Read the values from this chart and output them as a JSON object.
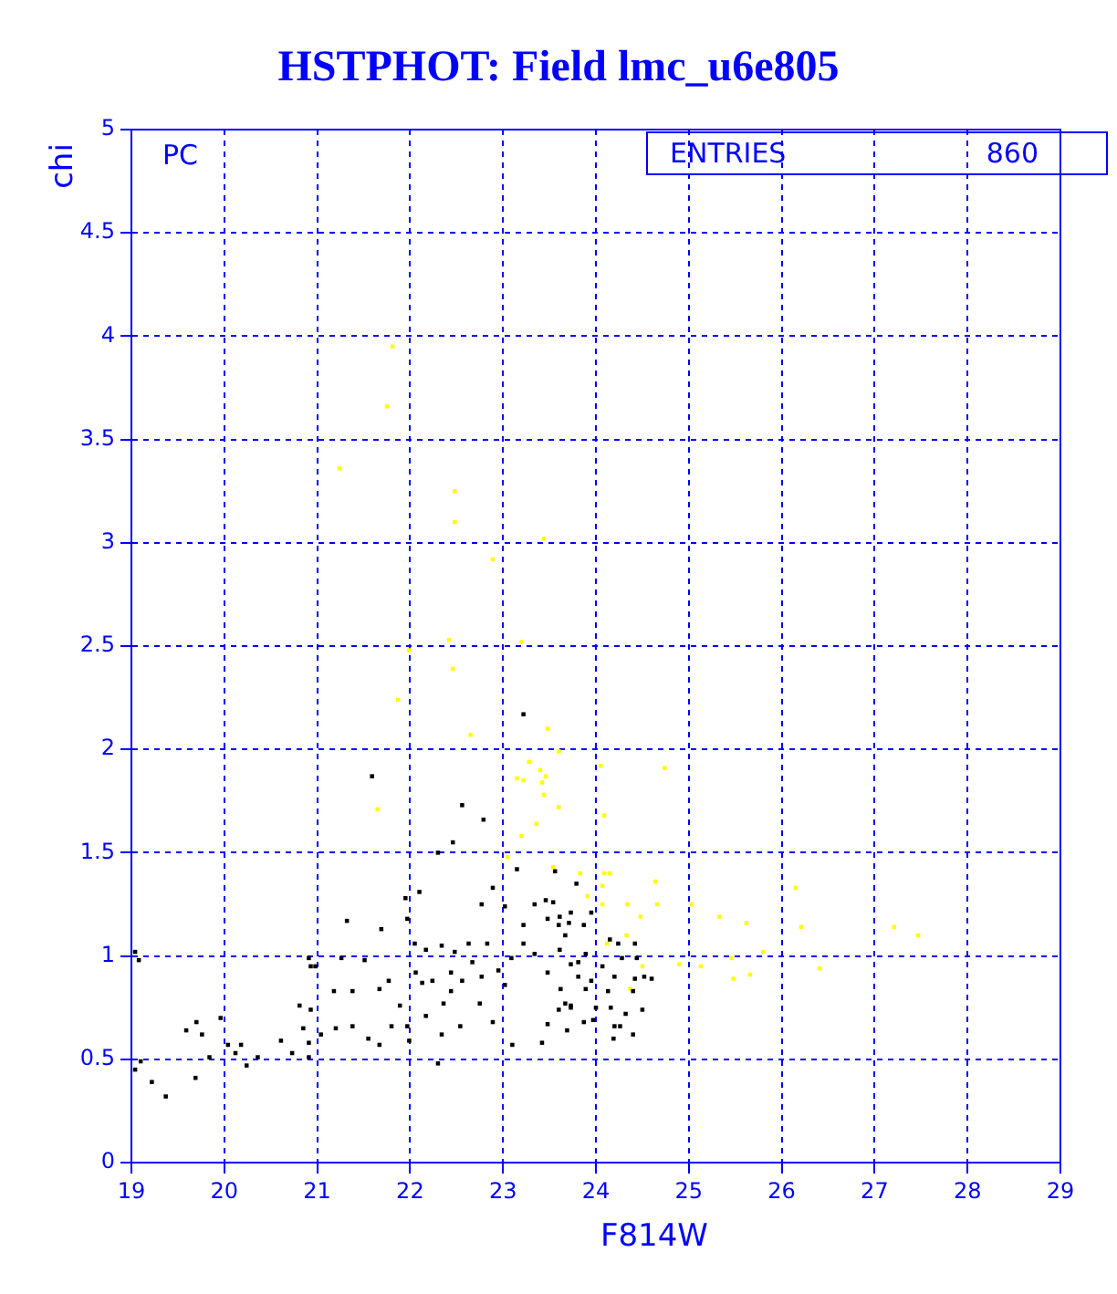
{
  "chart_data": {
    "type": "scatter",
    "title": "HSTPHOT: Field lmc_u6e805",
    "xlabel": "F814W",
    "ylabel": "chi",
    "annotations": [
      "PC",
      "ENTRIES",
      "860"
    ],
    "xlim": [
      19,
      29
    ],
    "ylim": [
      0,
      5
    ],
    "xticks": [
      19,
      20,
      21,
      22,
      23,
      24,
      25,
      26,
      27,
      28,
      29
    ],
    "yticks": [
      0,
      0.5,
      1,
      1.5,
      2,
      2.5,
      3,
      3.5,
      4,
      4.5,
      5
    ],
    "grid": true,
    "marker": "square",
    "series": [
      {
        "color": "#000000",
        "x": [
          21.59,
          23.22,
          22.56,
          22.79,
          22.46,
          22.3,
          23.15,
          22.77,
          21.95,
          21.32,
          21.69,
          21.97,
          22.1,
          19.04,
          19.08,
          19.1,
          19.04,
          19.22,
          19.37,
          19.7,
          19.76,
          19.59,
          19.69,
          19.84,
          19.96,
          20.04,
          20.12,
          20.24,
          20.36,
          20.18,
          20.61,
          20.73,
          20.91,
          20.81,
          20.91,
          20.93,
          20.98,
          20.85,
          20.91,
          20.93,
          21.04,
          21.18,
          21.26,
          21.51,
          21.38,
          21.2,
          21.38,
          21.55,
          21.67,
          21.8,
          21.89,
          21.67,
          21.77,
          21.97,
          21.99,
          22.13,
          22.17,
          22.36,
          22.34,
          22.3,
          22.54,
          22.75,
          22.89,
          23.1,
          23.42,
          23.48,
          23.02,
          22.05,
          22.17,
          22.34,
          22.48,
          22.63,
          22.83,
          22.67,
          22.44,
          22.24,
          22.06,
          22.56,
          22.44,
          22.77,
          22.95,
          23.09,
          23.22,
          23.34,
          23.48,
          23.61,
          23.67,
          23.73,
          22.89,
          23.02,
          23.34,
          23.46,
          23.61,
          23.71,
          23.48,
          23.22,
          23.56,
          23.79,
          23.54,
          23.73,
          23.95,
          23.87,
          23.6,
          23.67,
          24.15,
          24.24,
          24.42,
          23.89,
          24.28,
          24.44,
          23.73,
          24.07,
          23.81,
          23.95,
          24.2,
          24.52,
          24.6,
          24.42,
          23.62,
          23.89,
          24.13,
          24.4,
          23.73,
          24.0,
          24.16,
          24.5,
          24.32,
          23.6,
          23.97,
          23.87,
          24.2,
          23.69,
          24.4,
          24.19,
          24.26,
          23.81
        ],
        "values": [
          1.87,
          2.17,
          1.73,
          1.66,
          1.55,
          1.5,
          1.42,
          1.25,
          1.28,
          1.17,
          1.13,
          1.18,
          1.31,
          1.02,
          0.98,
          0.49,
          0.45,
          0.39,
          0.32,
          0.68,
          0.62,
          0.64,
          0.41,
          0.51,
          0.7,
          0.57,
          0.53,
          0.47,
          0.51,
          0.57,
          0.59,
          0.53,
          0.51,
          0.76,
          0.99,
          0.95,
          0.95,
          0.65,
          0.58,
          0.74,
          0.62,
          0.83,
          0.99,
          0.98,
          0.83,
          0.65,
          0.66,
          0.6,
          0.57,
          0.66,
          0.76,
          0.84,
          0.88,
          0.66,
          0.59,
          0.87,
          0.71,
          0.77,
          0.62,
          0.48,
          0.66,
          0.77,
          0.68,
          0.57,
          0.58,
          0.67,
          0.86,
          1.06,
          1.03,
          1.05,
          1.02,
          1.06,
          1.06,
          0.97,
          0.92,
          0.88,
          0.92,
          0.88,
          0.83,
          0.9,
          0.93,
          0.99,
          1.06,
          1.01,
          0.92,
          1.03,
          0.77,
          0.75,
          1.33,
          1.24,
          1.25,
          1.27,
          1.19,
          1.16,
          1.18,
          1.15,
          1.41,
          1.35,
          1.26,
          1.21,
          1.21,
          1.15,
          1.15,
          1.1,
          1.08,
          1.06,
          1.06,
          1.01,
          0.99,
          0.99,
          0.96,
          0.95,
          0.9,
          0.88,
          0.9,
          0.9,
          0.89,
          0.89,
          0.84,
          0.84,
          0.83,
          0.83,
          0.76,
          0.75,
          0.75,
          0.74,
          0.72,
          0.74,
          0.69,
          0.68,
          0.66,
          0.64,
          0.62,
          0.6,
          0.66,
          0.97
        ]
      },
      {
        "color": "#ffff00",
        "x": [
          21.81,
          21.75,
          21.24,
          22.48,
          22.48,
          23.44,
          22.89,
          22.42,
          23.2,
          22.46,
          21.99,
          21.87,
          22.65,
          23.48,
          23.6,
          23.28,
          23.15,
          23.22,
          23.4,
          23.46,
          23.42,
          23.44,
          23.6,
          23.36,
          23.2,
          23.05,
          21.65,
          24.05,
          24.74,
          24.09,
          23.54,
          23.83,
          24.09,
          24.15,
          24.64,
          24.07,
          23.91,
          24.34,
          24.66,
          24.48,
          25.03,
          25.33,
          25.62,
          26.15,
          26.21,
          27.21,
          27.47,
          25.8,
          25.46,
          25.13,
          25.48,
          25.66,
          26.41,
          24.9,
          24.33,
          24.12,
          24.5,
          24.37,
          24.07
        ],
        "values": [
          3.95,
          3.66,
          3.36,
          3.25,
          3.1,
          3.02,
          2.92,
          2.53,
          2.52,
          2.39,
          2.48,
          2.24,
          2.07,
          2.1,
          1.99,
          1.94,
          1.86,
          1.85,
          1.9,
          1.87,
          1.84,
          1.78,
          1.72,
          1.64,
          1.58,
          1.48,
          1.71,
          1.92,
          1.91,
          1.68,
          1.43,
          1.4,
          1.4,
          1.4,
          1.36,
          1.34,
          1.29,
          1.25,
          1.25,
          1.19,
          1.25,
          1.19,
          1.16,
          1.33,
          1.14,
          1.14,
          1.1,
          1.02,
          0.99,
          0.95,
          0.89,
          0.91,
          0.94,
          0.96,
          1.1,
          1.06,
          0.95,
          0.84,
          1.25
        ]
      }
    ]
  }
}
